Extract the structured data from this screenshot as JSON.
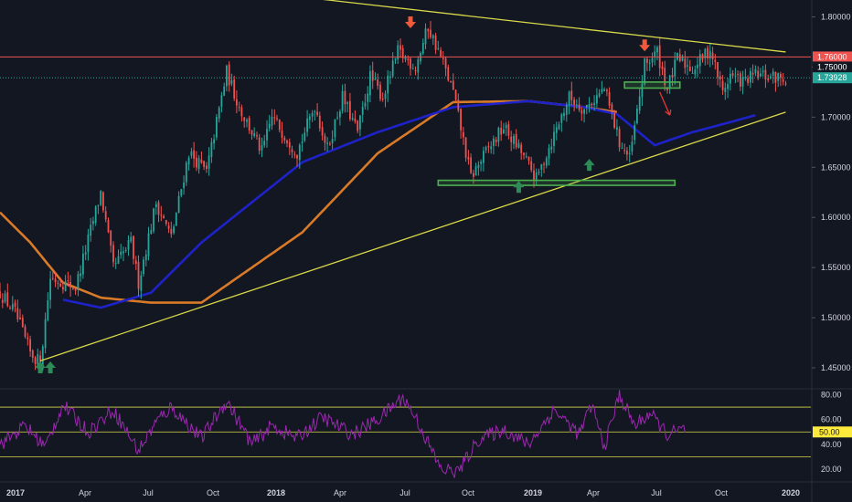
{
  "colors": {
    "background": "#131722",
    "axis_text": "#d1d4dc",
    "candle_up": "#26a69a",
    "candle_down": "#ef5350",
    "trendline": "#d9d94a",
    "resistance": "#ef5350",
    "support_box": "#4caf50",
    "ma_fast": "#d87a28",
    "ma_slow": "#1e22c9",
    "rsi": "#9c27b0",
    "rsi_levels": "#d9d94a",
    "marker_up": "#2e8b57",
    "marker_down": "#f05a3c",
    "current_price_badge": "#26a69a",
    "level_badge": "#ef5350",
    "rsi_badge": "#ffeb3b"
  },
  "chart_data": [
    {
      "type": "candlestick",
      "x_axis": {
        "labels": [
          "2017",
          "Apr",
          "Jul",
          "Oct",
          "2018",
          "Apr",
          "Jul",
          "Oct",
          "2019",
          "Apr",
          "Jul",
          "Oct",
          "2020"
        ],
        "bold_labels": [
          "2017",
          "2018",
          "2019",
          "2020"
        ]
      },
      "y_axis": {
        "range": [
          1.43,
          1.815
        ],
        "ticks": [
          "1.80000",
          "1.75000",
          "1.70000",
          "1.65000",
          "1.60000",
          "1.55000",
          "1.50000",
          "1.45000"
        ]
      },
      "price_anchors": {
        "t": [
          0,
          6,
          12,
          16,
          20,
          30,
          40,
          45,
          52,
          55,
          62,
          68,
          75,
          82,
          90,
          95,
          100,
          104,
          108,
          118,
          125,
          130,
          136,
          142,
          147,
          152,
          158,
          165,
          170,
          175,
          180,
          187,
          193,
          200,
          207,
          213,
          218,
          226,
          232,
          240,
          246,
          250,
          256,
          261,
          265,
          269,
          275,
          282,
          287,
          290,
          295,
          300,
          306,
          312
        ],
        "close": [
          1.525,
          1.505,
          1.465,
          1.455,
          1.54,
          1.53,
          1.625,
          1.55,
          1.575,
          1.535,
          1.615,
          1.58,
          1.665,
          1.645,
          1.745,
          1.71,
          1.685,
          1.665,
          1.7,
          1.665,
          1.712,
          1.668,
          1.72,
          1.685,
          1.74,
          1.72,
          1.765,
          1.75,
          1.79,
          1.76,
          1.725,
          1.64,
          1.665,
          1.69,
          1.665,
          1.638,
          1.67,
          1.72,
          1.708,
          1.728,
          1.675,
          1.658,
          1.752,
          1.765,
          1.728,
          1.758,
          1.748,
          1.768,
          1.725,
          1.742,
          1.735,
          1.742,
          1.74,
          1.739
        ]
      },
      "moving_average_fast": {
        "color_name": "orange",
        "t": [
          0,
          12,
          25,
          40,
          60,
          80,
          120,
          150,
          180,
          210,
          232,
          245
        ],
        "values": [
          1.605,
          1.575,
          1.535,
          1.52,
          1.515,
          1.515,
          1.585,
          1.664,
          1.715,
          1.716,
          1.71,
          1.705
        ]
      },
      "moving_average_slow": {
        "color_name": "blue",
        "t": [
          25,
          40,
          60,
          80,
          120,
          150,
          180,
          210,
          232,
          245,
          260,
          275,
          290,
          300
        ],
        "values": [
          1.518,
          1.51,
          1.525,
          1.575,
          1.655,
          1.685,
          1.71,
          1.716,
          1.71,
          1.703,
          1.672,
          1.685,
          1.695,
          1.702
        ]
      },
      "trendlines": [
        {
          "name": "descending resistance",
          "from": {
            "t": 84,
            "price": 1.83
          },
          "to": {
            "t": 312,
            "price": 1.765
          }
        },
        {
          "name": "ascending support",
          "from": {
            "t": 16,
            "price": 1.457
          },
          "to": {
            "t": 312,
            "price": 1.705
          }
        }
      ],
      "horizontal_levels": [
        {
          "name": "resistance",
          "price": 1.76,
          "style": "solid"
        },
        {
          "name": "current",
          "price": 1.73928,
          "style": "dotted"
        }
      ],
      "support_boxes": [
        {
          "t_start": 174,
          "t_end": 268,
          "price_low": 1.632,
          "price_high": 1.637
        },
        {
          "t_start": 248,
          "t_end": 270,
          "price_low": 1.729,
          "price_high": 1.735
        }
      ],
      "markers": [
        {
          "direction": "up",
          "t": 16,
          "price": 1.45
        },
        {
          "direction": "up",
          "t": 20,
          "price": 1.45
        },
        {
          "direction": "down",
          "t": 163,
          "price": 1.795
        },
        {
          "direction": "up",
          "t": 206,
          "price": 1.63
        },
        {
          "direction": "up",
          "t": 234,
          "price": 1.652
        },
        {
          "direction": "down",
          "t": 256,
          "price": 1.772
        }
      ],
      "projection_arrow": {
        "from": {
          "t": 262,
          "price": 1.725
        },
        "to": {
          "t": 266,
          "price": 1.702
        }
      },
      "price_badges": [
        {
          "label": "1.76000",
          "price": 1.76,
          "kind": "level"
        },
        {
          "label": "1.75000",
          "price": 1.75,
          "kind": "tick"
        },
        {
          "label": "1.73928",
          "price": 1.73928,
          "kind": "current"
        }
      ]
    },
    {
      "type": "line",
      "name": "RSI panel",
      "y_axis": {
        "range": [
          12,
          84
        ],
        "ticks": [
          "80.00",
          "60.00",
          "40.00",
          "20.00"
        ]
      },
      "levels": [
        70,
        50,
        30
      ],
      "anchors": {
        "t": [
          0,
          10,
          18,
          25,
          35,
          45,
          55,
          62,
          68,
          80,
          90,
          100,
          108,
          118,
          128,
          140,
          150,
          160,
          165,
          175,
          182,
          190,
          200,
          210,
          220,
          230,
          235,
          240,
          246,
          252,
          258,
          265,
          272
        ],
        "values": [
          40,
          55,
          38,
          72,
          50,
          68,
          35,
          58,
          70,
          45,
          75,
          40,
          55,
          45,
          62,
          48,
          60,
          78,
          62,
          20,
          18,
          44,
          52,
          40,
          68,
          48,
          72,
          38,
          80,
          55,
          65,
          48,
          52
        ]
      },
      "badge": "50.00"
    }
  ]
}
